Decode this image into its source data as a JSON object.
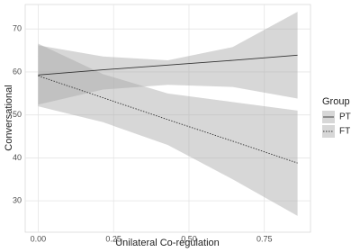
{
  "chart_data": {
    "type": "line",
    "x_label": "Unilateral Co-regulation",
    "y_label": "Conversational",
    "legend_title": "Group",
    "legend_position": "right",
    "grid": true,
    "xlim": [
      -0.043,
      0.903
    ],
    "ylim": [
      22.7,
      75.7
    ],
    "xticks": [
      {
        "value": 0,
        "label": "0.00"
      },
      0.25,
      {
        "value": 0.5,
        "label": "0.50"
      },
      0.75
    ],
    "yticks": [
      30,
      40,
      50,
      60,
      70
    ],
    "x": [
      0,
      0.215,
      0.43,
      0.645,
      0.86
    ],
    "band_color": "#a6a6a6",
    "series": [
      {
        "name": "PT",
        "color": "#333333",
        "dash": "solid",
        "values": [
          59.3,
          60.5,
          61.6,
          62.7,
          63.9
        ],
        "upper": [
          66.2,
          63.6,
          62.7,
          65.8,
          74.0
        ],
        "lower": [
          52.4,
          55.9,
          57.0,
          56.5,
          53.8
        ]
      },
      {
        "name": "FT",
        "color": "#333333",
        "dash": "dotted",
        "values": [
          59.1,
          54.0,
          48.9,
          43.9,
          38.8
        ],
        "upper": [
          66.6,
          59.5,
          55.0,
          53.0,
          51.0
        ],
        "lower": [
          52.0,
          48.3,
          43.0,
          35.0,
          26.5
        ]
      }
    ]
  }
}
